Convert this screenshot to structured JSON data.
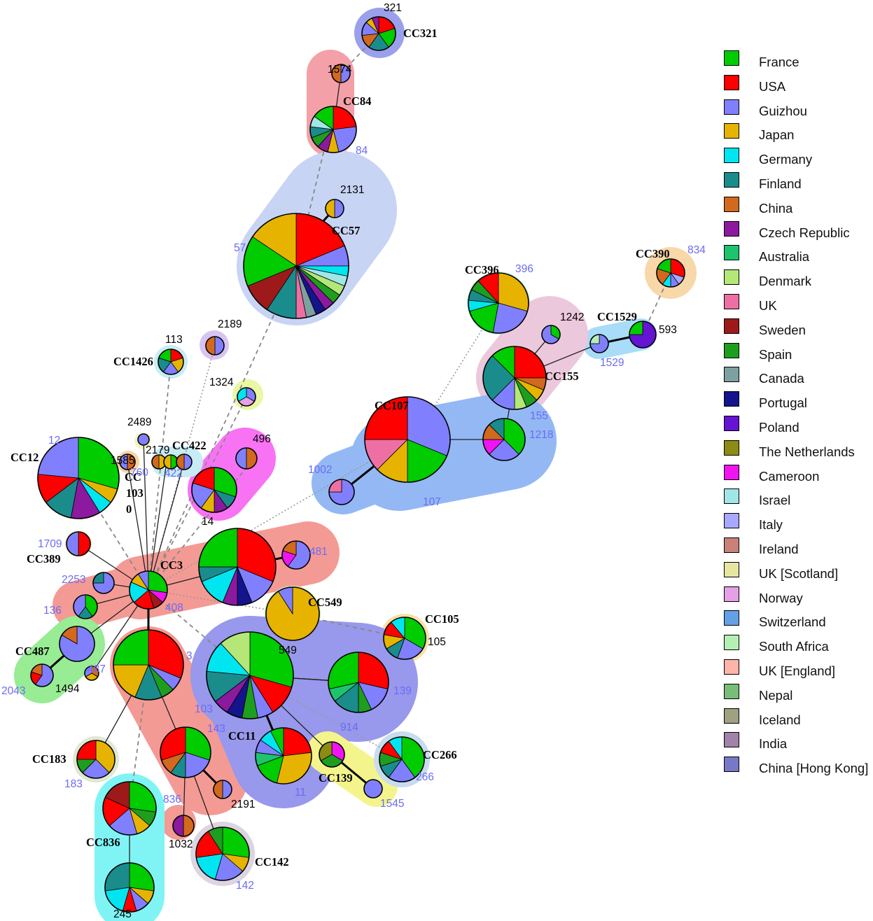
{
  "legend": [
    {
      "label": "France",
      "color": "#00cc00"
    },
    {
      "label": "USA",
      "color": "#ff0000"
    },
    {
      "label": "Guizhou",
      "color": "#8080ff"
    },
    {
      "label": "Japan",
      "color": "#e6b400"
    },
    {
      "label": "Germany",
      "color": "#00e6f0"
    },
    {
      "label": "Finland",
      "color": "#1a8c8c"
    },
    {
      "label": "China",
      "color": "#d2691e"
    },
    {
      "label": "Czech Republic",
      "color": "#8b1a9e"
    },
    {
      "label": "Australia",
      "color": "#1ec36e"
    },
    {
      "label": "Denmark",
      "color": "#b4e678"
    },
    {
      "label": "UK",
      "color": "#ee6fa3"
    },
    {
      "label": "Sweden",
      "color": "#9e1a1a"
    },
    {
      "label": "Spain",
      "color": "#1e9e1e"
    },
    {
      "label": "Canada",
      "color": "#7fa0a0"
    },
    {
      "label": "Portugal",
      "color": "#14148c"
    },
    {
      "label": "Poland",
      "color": "#6414d2"
    },
    {
      "label": "The Netherlands",
      "color": "#8c8c14"
    },
    {
      "label": "Cameroon",
      "color": "#f014f0"
    },
    {
      "label": "Israel",
      "color": "#a0e6e6"
    },
    {
      "label": "Italy",
      "color": "#a8a8ff"
    },
    {
      "label": "Ireland",
      "color": "#c88278"
    },
    {
      "label": "UK [Scotland]",
      "color": "#e6e6a0"
    },
    {
      "label": "Norway",
      "color": "#e6a0e6"
    },
    {
      "label": "Switzerland",
      "color": "#64a0e6"
    },
    {
      "label": "South Africa",
      "color": "#b4f0b4"
    },
    {
      "label": "UK [England]",
      "color": "#ffb4aa"
    },
    {
      "label": "Nepal",
      "color": "#78be78"
    },
    {
      "label": "Iceland",
      "color": "#a0a082"
    },
    {
      "label": "India",
      "color": "#a082aa"
    },
    {
      "label": "China [Hong Kong]",
      "color": "#7878c8"
    }
  ],
  "clonal_complexes": [
    "CC321",
    "CC84",
    "CC57",
    "CC390",
    "CC396",
    "CC1529",
    "CC155",
    "CC1426",
    "CC422",
    "CC107",
    "CC12",
    "CC103",
    "CC389",
    "CC3",
    "CC549",
    "CC105",
    "CC487",
    "CC11",
    "CC183",
    "CC266",
    "CC139",
    "CC836",
    "CC142"
  ],
  "sequence_types": [
    "321",
    "1574",
    "84",
    "2131",
    "57",
    "834",
    "396",
    "1242",
    "593",
    "1529",
    "113",
    "2189",
    "1324",
    "155",
    "2489",
    "1585",
    "2179",
    "496",
    "12",
    "760",
    "422",
    "1218",
    "1002",
    "107",
    "14",
    "1709",
    "481",
    "2253",
    "408",
    "136",
    "549",
    "105",
    "3",
    "487",
    "2043",
    "1494",
    "139",
    "103",
    "143",
    "914",
    "11",
    "183",
    "266",
    "1545",
    "836",
    "2191",
    "1032",
    "142",
    "245"
  ],
  "cc1030_label": [
    "CC",
    "103",
    "0"
  ]
}
